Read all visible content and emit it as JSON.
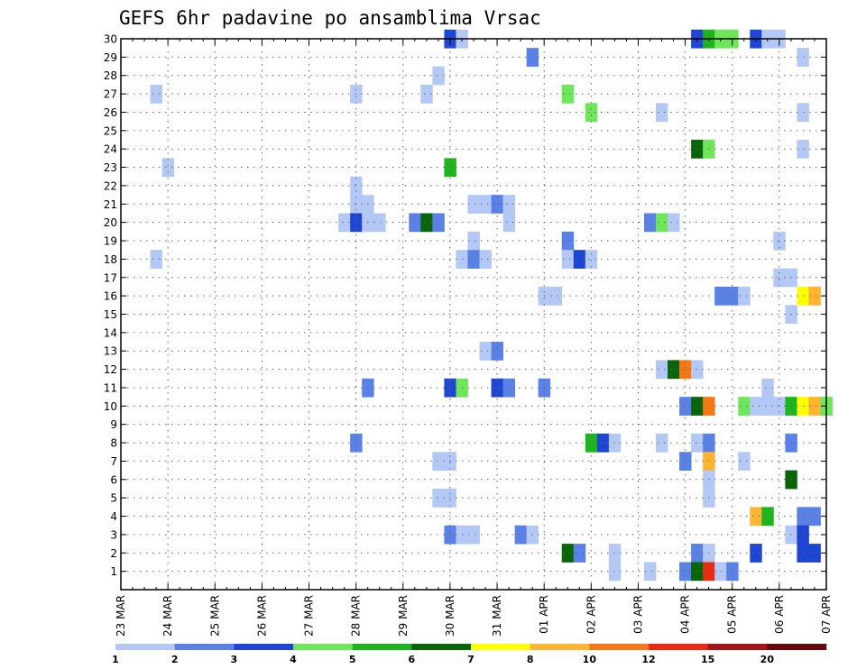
{
  "chart_data": {
    "type": "heatmap",
    "title": "GEFS 6hr padavine po ansamblima Vrsac",
    "y_ticks": [
      "1",
      "2",
      "3",
      "4",
      "5",
      "6",
      "7",
      "8",
      "9",
      "10",
      "11",
      "12",
      "13",
      "14",
      "15",
      "16",
      "17",
      "18",
      "19",
      "20",
      "21",
      "22",
      "23",
      "24",
      "25",
      "26",
      "27",
      "28",
      "29",
      "30"
    ],
    "x_ticks": [
      "23 MAR",
      "24 MAR",
      "25 MAR",
      "26 MAR",
      "27 MAR",
      "28 MAR",
      "29 MAR",
      "30 MAR",
      "31 MAR",
      "01 APR",
      "02 APR",
      "03 APR",
      "04 APR",
      "05 APR",
      "06 APR",
      "07 APR"
    ],
    "x_unit": "6-hour steps from 23 MAR 00z",
    "x_range": [
      0,
      60
    ],
    "y_range": [
      0,
      30
    ],
    "grid": true,
    "colorbar": {
      "labels": [
        "1",
        "2",
        "3",
        "4",
        "5",
        "6",
        "7",
        "8",
        "10",
        "12",
        "15",
        "20"
      ],
      "colors": [
        "#b4c8f5",
        "#5a82e6",
        "#1e46d2",
        "#6ee65a",
        "#1eb41e",
        "#0a640a",
        "#ffff00",
        "#ffb432",
        "#f57814",
        "#e62d14",
        "#a51414",
        "#640a0a"
      ]
    },
    "cells": [
      {
        "m": 30,
        "s": 28,
        "v": 3
      },
      {
        "m": 30,
        "s": 29,
        "v": 1
      },
      {
        "m": 30,
        "s": 49,
        "v": 3
      },
      {
        "m": 30,
        "s": 50,
        "v": 5
      },
      {
        "m": 30,
        "s": 51,
        "v": 4
      },
      {
        "m": 30,
        "s": 52,
        "v": 4
      },
      {
        "m": 30,
        "s": 54,
        "v": 3
      },
      {
        "m": 30,
        "s": 55,
        "v": 1
      },
      {
        "m": 30,
        "s": 56,
        "v": 1
      },
      {
        "m": 29,
        "s": 35,
        "v": 2
      },
      {
        "m": 29,
        "s": 58,
        "v": 1
      },
      {
        "m": 28,
        "s": 27,
        "v": 1
      },
      {
        "m": 27,
        "s": 3,
        "v": 1
      },
      {
        "m": 27,
        "s": 20,
        "v": 1
      },
      {
        "m": 27,
        "s": 26,
        "v": 1
      },
      {
        "m": 27,
        "s": 38,
        "v": 4
      },
      {
        "m": 26,
        "s": 40,
        "v": 4
      },
      {
        "m": 26,
        "s": 46,
        "v": 1
      },
      {
        "m": 26,
        "s": 58,
        "v": 1
      },
      {
        "m": 24,
        "s": 49,
        "v": 6
      },
      {
        "m": 24,
        "s": 50,
        "v": 4
      },
      {
        "m": 24,
        "s": 58,
        "v": 1
      },
      {
        "m": 23,
        "s": 4,
        "v": 1
      },
      {
        "m": 23,
        "s": 28,
        "v": 5
      },
      {
        "m": 22,
        "s": 20,
        "v": 1
      },
      {
        "m": 21,
        "s": 20,
        "v": 1
      },
      {
        "m": 21,
        "s": 21,
        "v": 1
      },
      {
        "m": 21,
        "s": 30,
        "v": 1
      },
      {
        "m": 21,
        "s": 31,
        "v": 1
      },
      {
        "m": 21,
        "s": 32,
        "v": 2
      },
      {
        "m": 21,
        "s": 33,
        "v": 1
      },
      {
        "m": 20,
        "s": 19,
        "v": 1
      },
      {
        "m": 20,
        "s": 20,
        "v": 3
      },
      {
        "m": 20,
        "s": 21,
        "v": 1
      },
      {
        "m": 20,
        "s": 22,
        "v": 1
      },
      {
        "m": 20,
        "s": 25,
        "v": 2
      },
      {
        "m": 20,
        "s": 26,
        "v": 6
      },
      {
        "m": 20,
        "s": 27,
        "v": 2
      },
      {
        "m": 20,
        "s": 33,
        "v": 1
      },
      {
        "m": 20,
        "s": 45,
        "v": 2
      },
      {
        "m": 20,
        "s": 46,
        "v": 4
      },
      {
        "m": 20,
        "s": 47,
        "v": 1
      },
      {
        "m": 19,
        "s": 30,
        "v": 1
      },
      {
        "m": 19,
        "s": 38,
        "v": 2
      },
      {
        "m": 19,
        "s": 56,
        "v": 1
      },
      {
        "m": 18,
        "s": 3,
        "v": 1
      },
      {
        "m": 18,
        "s": 29,
        "v": 1
      },
      {
        "m": 18,
        "s": 30,
        "v": 2
      },
      {
        "m": 18,
        "s": 31,
        "v": 1
      },
      {
        "m": 18,
        "s": 38,
        "v": 1
      },
      {
        "m": 18,
        "s": 39,
        "v": 3
      },
      {
        "m": 18,
        "s": 40,
        "v": 1
      },
      {
        "m": 17,
        "s": 56,
        "v": 1
      },
      {
        "m": 17,
        "s": 57,
        "v": 1
      },
      {
        "m": 16,
        "s": 36,
        "v": 1
      },
      {
        "m": 16,
        "s": 37,
        "v": 1
      },
      {
        "m": 16,
        "s": 51,
        "v": 2
      },
      {
        "m": 16,
        "s": 52,
        "v": 2
      },
      {
        "m": 16,
        "s": 53,
        "v": 1
      },
      {
        "m": 16,
        "s": 58,
        "v": 7
      },
      {
        "m": 16,
        "s": 59,
        "v": 8
      },
      {
        "m": 15,
        "s": 57,
        "v": 1
      },
      {
        "m": 13,
        "s": 31,
        "v": 1
      },
      {
        "m": 13,
        "s": 32,
        "v": 2
      },
      {
        "m": 12,
        "s": 46,
        "v": 1
      },
      {
        "m": 12,
        "s": 47,
        "v": 6
      },
      {
        "m": 12,
        "s": 48,
        "v": 9
      },
      {
        "m": 12,
        "s": 49,
        "v": 1
      },
      {
        "m": 11,
        "s": 21,
        "v": 2
      },
      {
        "m": 11,
        "s": 28,
        "v": 3
      },
      {
        "m": 11,
        "s": 29,
        "v": 4
      },
      {
        "m": 11,
        "s": 32,
        "v": 3
      },
      {
        "m": 11,
        "s": 33,
        "v": 2
      },
      {
        "m": 11,
        "s": 36,
        "v": 2
      },
      {
        "m": 11,
        "s": 55,
        "v": 1
      },
      {
        "m": 10,
        "s": 48,
        "v": 2
      },
      {
        "m": 10,
        "s": 49,
        "v": 6
      },
      {
        "m": 10,
        "s": 50,
        "v": 9
      },
      {
        "m": 10,
        "s": 53,
        "v": 4
      },
      {
        "m": 10,
        "s": 54,
        "v": 1
      },
      {
        "m": 10,
        "s": 55,
        "v": 1
      },
      {
        "m": 10,
        "s": 56,
        "v": 1
      },
      {
        "m": 10,
        "s": 57,
        "v": 5
      },
      {
        "m": 10,
        "s": 58,
        "v": 7
      },
      {
        "m": 10,
        "s": 59,
        "v": 8
      },
      {
        "m": 10,
        "s": 60,
        "v": 4
      },
      {
        "m": 8,
        "s": 20,
        "v": 2
      },
      {
        "m": 8,
        "s": 40,
        "v": 5
      },
      {
        "m": 8,
        "s": 41,
        "v": 3
      },
      {
        "m": 8,
        "s": 42,
        "v": 1
      },
      {
        "m": 8,
        "s": 46,
        "v": 1
      },
      {
        "m": 8,
        "s": 49,
        "v": 1
      },
      {
        "m": 8,
        "s": 50,
        "v": 2
      },
      {
        "m": 8,
        "s": 57,
        "v": 2
      },
      {
        "m": 7,
        "s": 27,
        "v": 1
      },
      {
        "m": 7,
        "s": 28,
        "v": 1
      },
      {
        "m": 7,
        "s": 48,
        "v": 2
      },
      {
        "m": 7,
        "s": 50,
        "v": 8
      },
      {
        "m": 7,
        "s": 53,
        "v": 1
      },
      {
        "m": 6,
        "s": 50,
        "v": 1
      },
      {
        "m": 6,
        "s": 57,
        "v": 6
      },
      {
        "m": 5,
        "s": 27,
        "v": 1
      },
      {
        "m": 5,
        "s": 28,
        "v": 1
      },
      {
        "m": 5,
        "s": 50,
        "v": 1
      },
      {
        "m": 4,
        "s": 54,
        "v": 8
      },
      {
        "m": 4,
        "s": 55,
        "v": 5
      },
      {
        "m": 4,
        "s": 58,
        "v": 2
      },
      {
        "m": 4,
        "s": 59,
        "v": 2
      },
      {
        "m": 3,
        "s": 28,
        "v": 2
      },
      {
        "m": 3,
        "s": 29,
        "v": 1
      },
      {
        "m": 3,
        "s": 30,
        "v": 1
      },
      {
        "m": 3,
        "s": 34,
        "v": 2
      },
      {
        "m": 3,
        "s": 35,
        "v": 1
      },
      {
        "m": 3,
        "s": 57,
        "v": 1
      },
      {
        "m": 3,
        "s": 58,
        "v": 3
      },
      {
        "m": 2,
        "s": 38,
        "v": 6
      },
      {
        "m": 2,
        "s": 39,
        "v": 2
      },
      {
        "m": 2,
        "s": 42,
        "v": 1
      },
      {
        "m": 2,
        "s": 49,
        "v": 2
      },
      {
        "m": 2,
        "s": 50,
        "v": 1
      },
      {
        "m": 2,
        "s": 54,
        "v": 3
      },
      {
        "m": 2,
        "s": 58,
        "v": 3
      },
      {
        "m": 2,
        "s": 59,
        "v": 3
      },
      {
        "m": 1,
        "s": 42,
        "v": 1
      },
      {
        "m": 1,
        "s": 45,
        "v": 1
      },
      {
        "m": 1,
        "s": 48,
        "v": 2
      },
      {
        "m": 1,
        "s": 49,
        "v": 6
      },
      {
        "m": 1,
        "s": 50,
        "v": 10
      },
      {
        "m": 1,
        "s": 51,
        "v": 1
      },
      {
        "m": 1,
        "s": 52,
        "v": 2
      }
    ]
  }
}
